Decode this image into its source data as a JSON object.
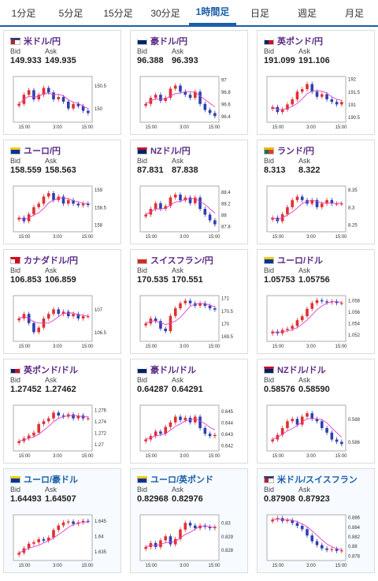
{
  "tabs": [
    "1分足",
    "5分足",
    "15分足",
    "30分足",
    "1時間足",
    "日足",
    "週足",
    "月足"
  ],
  "active_tab": 4,
  "labels": {
    "bid": "Bid",
    "ask": "Ask"
  },
  "colors": {
    "up": "#e03030",
    "down": "#2f3fb0",
    "ma": "#e040c8",
    "title": "#5b2a86",
    "accent": "#1a5fa8"
  },
  "pairs": [
    {
      "name": "米ドル/円",
      "flag": "flag-us-icon",
      "bid": "149.933",
      "ask": "149.935"
    },
    {
      "name": "豪ドル/円",
      "flag": "flag-au-icon",
      "bid": "96.388",
      "ask": "96.393"
    },
    {
      "name": "英ポンド/円",
      "flag": "flag-gb-icon",
      "bid": "191.099",
      "ask": "191.106"
    },
    {
      "name": "ユーロ/円",
      "flag": "flag-eu-icon",
      "bid": "158.559",
      "ask": "158.563"
    },
    {
      "name": "NZドル/円",
      "flag": "flag-nz-icon",
      "bid": "87.831",
      "ask": "87.838"
    },
    {
      "name": "ランド/円",
      "flag": "flag-za-icon",
      "bid": "8.313",
      "ask": "8.322"
    },
    {
      "name": "カナダドル/円",
      "flag": "flag-ca-icon",
      "bid": "106.853",
      "ask": "106.859"
    },
    {
      "name": "スイスフラン/円",
      "flag": "flag-ch-icon",
      "bid": "170.535",
      "ask": "170.551"
    },
    {
      "name": "ユーロ/ドル",
      "flag": "flag-eu-icon",
      "bid": "1.05753",
      "ask": "1.05756"
    },
    {
      "name": "英ポンド/ドル",
      "flag": "flag-gb-icon",
      "bid": "1.27452",
      "ask": "1.27462"
    },
    {
      "name": "豪ドル/ドル",
      "flag": "flag-au-icon",
      "bid": "0.64287",
      "ask": "0.64291"
    },
    {
      "name": "NZドル/ドル",
      "flag": "flag-nz-icon",
      "bid": "0.58576",
      "ask": "0.58590"
    },
    {
      "name": "ユーロ/豪ドル",
      "flag": "flag-eu-icon",
      "bid": "1.64493",
      "ask": "1.64507"
    },
    {
      "name": "ユーロ/英ポンド",
      "flag": "flag-eu-icon",
      "bid": "0.82968",
      "ask": "0.82976"
    },
    {
      "name": "米ドル/スイスフラン",
      "flag": "flag-us-icon",
      "bid": "0.87908",
      "ask": "0.87923"
    }
  ],
  "chart_data": [
    {
      "type": "candlestick",
      "x_ticks": [
        "15:00",
        "3:00",
        "15:00"
      ],
      "y_ticks": [
        150,
        150.5
      ],
      "ylim": [
        149.7,
        150.7
      ],
      "close": [
        150.1,
        150.3,
        150.4,
        150.2,
        150.3,
        150.45,
        150.35,
        150.2,
        150.25,
        150.15,
        150.0,
        150.1,
        150.05,
        149.95,
        149.9
      ]
    },
    {
      "type": "candlestick",
      "x_ticks": [
        "15:00",
        "3:00",
        "15:00"
      ],
      "y_ticks": [
        96.4,
        96.6,
        96.8,
        97
      ],
      "ylim": [
        96.3,
        97.05
      ],
      "close": [
        96.6,
        96.7,
        96.75,
        96.65,
        96.7,
        96.85,
        96.9,
        96.8,
        96.75,
        96.7,
        96.8,
        96.6,
        96.5,
        96.45,
        96.4
      ]
    },
    {
      "type": "candlestick",
      "x_ticks": [
        "15:00",
        "3:00",
        "15:00"
      ],
      "y_ticks": [
        190.5,
        191,
        191.5,
        192
      ],
      "ylim": [
        190.3,
        192.1
      ],
      "close": [
        190.9,
        190.7,
        190.8,
        191.0,
        191.2,
        191.5,
        191.6,
        191.8,
        191.5,
        191.3,
        191.4,
        191.2,
        191.1,
        191.0,
        191.1
      ]
    },
    {
      "type": "candlestick",
      "x_ticks": [
        "15:00",
        "3:00",
        "15:00"
      ],
      "y_ticks": [
        158,
        158.5,
        159
      ],
      "ylim": [
        157.8,
        159.1
      ],
      "close": [
        158.2,
        158.1,
        158.3,
        158.5,
        158.6,
        158.8,
        158.9,
        158.7,
        158.8,
        158.6,
        158.7,
        158.6,
        158.55,
        158.6,
        158.56
      ]
    },
    {
      "type": "candlestick",
      "x_ticks": [
        "15:00",
        "3:00",
        "15:00"
      ],
      "y_ticks": [
        87.8,
        88,
        88.2,
        88.4
      ],
      "ylim": [
        87.7,
        88.5
      ],
      "close": [
        88.0,
        88.1,
        88.2,
        88.1,
        88.15,
        88.3,
        88.35,
        88.25,
        88.3,
        88.2,
        88.3,
        88.1,
        88.0,
        87.9,
        87.83
      ]
    },
    {
      "type": "candlestick",
      "x_ticks": [
        "15:00",
        "3:00",
        "15:00"
      ],
      "y_ticks": [
        8.25,
        8.3,
        8.35
      ],
      "ylim": [
        8.23,
        8.36
      ],
      "close": [
        8.27,
        8.26,
        8.28,
        8.3,
        8.32,
        8.33,
        8.32,
        8.31,
        8.32,
        8.3,
        8.31,
        8.32,
        8.31,
        8.31,
        8.31
      ]
    },
    {
      "type": "candlestick",
      "x_ticks": [
        "15:00",
        "3:00",
        "15:00"
      ],
      "y_ticks": [
        106.5,
        107
      ],
      "ylim": [
        106.3,
        107.3
      ],
      "close": [
        106.8,
        106.9,
        106.7,
        106.5,
        106.6,
        106.8,
        106.9,
        107.0,
        106.9,
        106.95,
        106.85,
        106.9,
        106.8,
        106.85,
        106.85
      ]
    },
    {
      "type": "candlestick",
      "x_ticks": [
        "15:00",
        "3:00",
        "15:00"
      ],
      "y_ticks": [
        169.5,
        170,
        170.5,
        171
      ],
      "ylim": [
        169.3,
        171.1
      ],
      "close": [
        170.0,
        170.2,
        170.1,
        169.8,
        169.7,
        170.3,
        170.6,
        170.8,
        170.9,
        170.8,
        170.7,
        170.8,
        170.7,
        170.6,
        170.55
      ]
    },
    {
      "type": "candlestick",
      "x_ticks": [
        "15:00",
        "3:00",
        "15:00"
      ],
      "y_ticks": [
        1.052,
        1.054,
        1.056,
        1.058
      ],
      "ylim": [
        1.0508,
        1.0588
      ],
      "close": [
        1.0525,
        1.0522,
        1.0528,
        1.053,
        1.0535,
        1.0545,
        1.0552,
        1.0565,
        1.0575,
        1.058,
        1.0578,
        1.0576,
        1.0578,
        1.0575,
        1.0575
      ]
    },
    {
      "type": "candlestick",
      "x_ticks": [
        "15:00",
        "3:00",
        "15:00"
      ],
      "y_ticks": [
        1.27,
        1.272,
        1.274,
        1.276
      ],
      "ylim": [
        1.2688,
        1.2768
      ],
      "close": [
        1.2705,
        1.271,
        1.2715,
        1.272,
        1.2735,
        1.274,
        1.2745,
        1.2755,
        1.275,
        1.2748,
        1.2752,
        1.2745,
        1.275,
        1.2745,
        1.2745
      ]
    },
    {
      "type": "candlestick",
      "x_ticks": [
        "15:00",
        "3:00",
        "15:00"
      ],
      "y_ticks": [
        0.642,
        0.643,
        0.644,
        0.645
      ],
      "ylim": [
        0.6415,
        0.6455
      ],
      "close": [
        0.6425,
        0.6428,
        0.6432,
        0.643,
        0.6436,
        0.644,
        0.6445,
        0.6442,
        0.6444,
        0.644,
        0.6445,
        0.6435,
        0.643,
        0.6428,
        0.6429
      ]
    },
    {
      "type": "candlestick",
      "x_ticks": [
        "15:00",
        "3:00",
        "15:00"
      ],
      "y_ticks": [
        0.586,
        0.588
      ],
      "ylim": [
        0.5852,
        0.5892
      ],
      "close": [
        0.5862,
        0.5866,
        0.5872,
        0.5878,
        0.588,
        0.5875,
        0.5882,
        0.5885,
        0.588,
        0.5878,
        0.5872,
        0.5868,
        0.5862,
        0.586,
        0.5858
      ]
    },
    {
      "type": "candlestick",
      "x_ticks": [
        "15:00",
        "3:00",
        "15:00"
      ],
      "y_ticks": [
        1.635,
        1.64,
        1.645
      ],
      "ylim": [
        1.632,
        1.647
      ],
      "close": [
        1.6345,
        1.636,
        1.6375,
        1.638,
        1.639,
        1.6385,
        1.6395,
        1.642,
        1.6435,
        1.6445,
        1.6448,
        1.644,
        1.6445,
        1.645,
        1.6449
      ]
    },
    {
      "type": "candlestick",
      "x_ticks": [
        "15:00",
        "3:00",
        "15:00"
      ],
      "y_ticks": [
        0.828,
        0.829,
        0.83
      ],
      "ylim": [
        0.8272,
        0.8306
      ],
      "close": [
        0.8282,
        0.8285,
        0.8282,
        0.8287,
        0.829,
        0.8284,
        0.8288,
        0.8295,
        0.83,
        0.8298,
        0.8296,
        0.8298,
        0.8297,
        0.8296,
        0.8297
      ]
    },
    {
      "type": "candlestick",
      "x_ticks": [
        "15:00",
        "3:00",
        "15:00"
      ],
      "y_ticks": [
        0.878,
        0.88,
        0.882,
        0.884,
        0.886
      ],
      "ylim": [
        0.877,
        0.8865
      ],
      "close": [
        0.8855,
        0.8858,
        0.8852,
        0.8854,
        0.8848,
        0.8842,
        0.8835,
        0.8822,
        0.881,
        0.8802,
        0.8795,
        0.8792,
        0.8794,
        0.879,
        0.8791
      ]
    }
  ]
}
